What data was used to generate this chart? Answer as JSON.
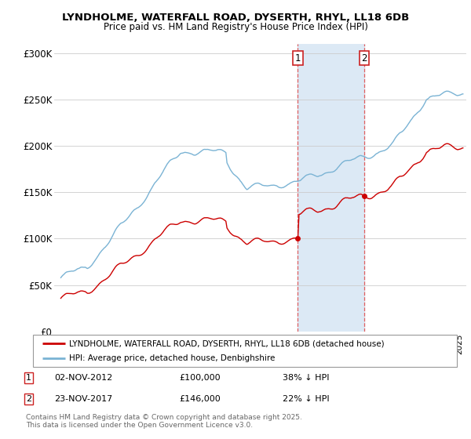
{
  "title1": "LYNDHOLME, WATERFALL ROAD, DYSERTH, RHYL, LL18 6DB",
  "title2": "Price paid vs. HM Land Registry's House Price Index (HPI)",
  "ylim": [
    0,
    310000
  ],
  "yticks": [
    0,
    50000,
    100000,
    150000,
    200000,
    250000,
    300000
  ],
  "ytick_labels": [
    "£0",
    "£50K",
    "£100K",
    "£150K",
    "£200K",
    "£250K",
    "£300K"
  ],
  "hpi_color": "#7ab3d4",
  "price_color": "#cc0000",
  "transaction1_year": 2012,
  "transaction1_month": 11,
  "transaction1_price": 100000,
  "transaction2_year": 2017,
  "transaction2_month": 11,
  "transaction2_price": 146000,
  "legend_line1": "LYNDHOLME, WATERFALL ROAD, DYSERTH, RHYL, LL18 6DB (detached house)",
  "legend_line2": "HPI: Average price, detached house, Denbighshire",
  "fn1_date": "02-NOV-2012",
  "fn1_price": "£100,000",
  "fn1_note": "38% ↓ HPI",
  "fn2_date": "23-NOV-2017",
  "fn2_price": "£146,000",
  "fn2_note": "22% ↓ HPI",
  "copyright": "Contains HM Land Registry data © Crown copyright and database right 2025.\nThis data is licensed under the Open Government Licence v3.0.",
  "background_color": "#ffffff",
  "shade_color": "#dce9f5",
  "grid_color": "#cccccc",
  "dashed_color": "#e06060"
}
